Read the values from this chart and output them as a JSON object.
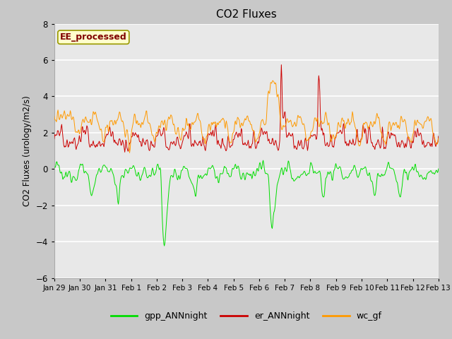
{
  "title": "CO2 Fluxes",
  "ylabel": "CO2 Fluxes (urology/m2/s)",
  "ylim": [
    -6,
    8
  ],
  "yticks": [
    -6,
    -4,
    -2,
    0,
    2,
    4,
    6,
    8
  ],
  "xtick_labels": [
    "Jan 29",
    "Jan 30",
    "Jan 31",
    "Feb 1",
    "Feb 2",
    "Feb 3",
    "Feb 4",
    "Feb 5",
    "Feb 6",
    "Feb 7",
    "Feb 8",
    "Feb 9",
    "Feb 10",
    "Feb 11",
    "Feb 12",
    "Feb 13"
  ],
  "colors": {
    "gpp": "#00dd00",
    "er": "#cc0000",
    "wc": "#ff9900"
  },
  "legend_labels": [
    "gpp_ANNnight",
    "er_ANNnight",
    "wc_gf"
  ],
  "annotation_text": "EE_processed",
  "annotation_color": "#800000",
  "annotation_bg": "#ffffcc",
  "annotation_border": "#999900",
  "title_fontsize": 11,
  "axis_fontsize": 8,
  "legend_fontsize": 9
}
